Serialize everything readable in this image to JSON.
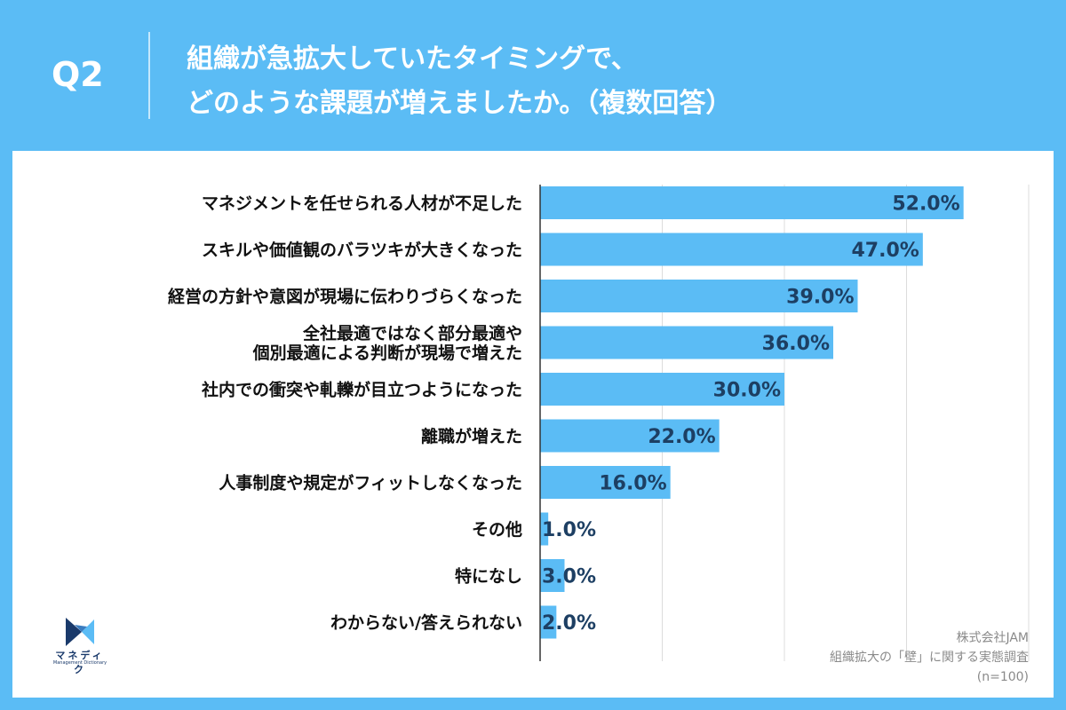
{
  "header": {
    "q_label": "Q2",
    "title_line1": "組織が急拡大していたタイミングで、",
    "title_line2": "どのような課題が増えましたか。（複数回答）"
  },
  "colors": {
    "background": "#5bbcf5",
    "bar": "#5bbcf5",
    "value_text": "#1d3f63",
    "panel": "#ffffff"
  },
  "chart_data": {
    "type": "bar",
    "orientation": "horizontal",
    "categories": [
      [
        "マネジメントを任せられる人材が不足した"
      ],
      [
        "スキルや価値観のバラツキが大きくなった"
      ],
      [
        "経営の方針や意図が現場に伝わりづらくなった"
      ],
      [
        "全社最適ではなく部分最適や",
        "個別最適による判断が現場で増えた"
      ],
      [
        "社内での衝突や軋轢が目立つようになった"
      ],
      [
        "離職が増えた"
      ],
      [
        "人事制度や規定がフィットしなくなった"
      ],
      [
        "その他"
      ],
      [
        "特になし"
      ],
      [
        "わからない/答えられない"
      ]
    ],
    "values": [
      52.0,
      47.0,
      39.0,
      36.0,
      30.0,
      22.0,
      16.0,
      1.0,
      3.0,
      2.0
    ],
    "value_labels": [
      "52.0%",
      "47.0%",
      "39.0%",
      "36.0%",
      "30.0%",
      "22.0%",
      "16.0%",
      "1.0%",
      "3.0%",
      "2.0%"
    ],
    "xlim": [
      0,
      60
    ],
    "grid": true,
    "grid_step": 15,
    "unit": "%"
  },
  "source": {
    "company": "株式会社JAM",
    "survey": "組織拡大の「壁」に関する実態調査",
    "sample": "(n=100)"
  },
  "logo": {
    "text": "マネディク",
    "sub": "Management Dictionary"
  }
}
